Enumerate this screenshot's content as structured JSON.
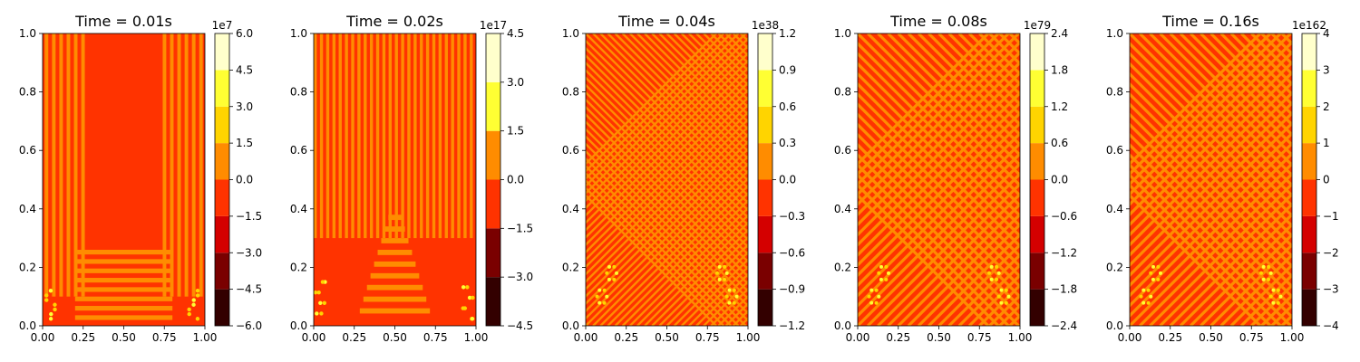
{
  "figure": {
    "background": "#ffffff",
    "colormap": "hot",
    "colormap_levels": [
      "#330000",
      "#7a0000",
      "#d40000",
      "#ff3300",
      "#ff8c00",
      "#ffd400",
      "#ffff33",
      "#ffffcc"
    ]
  },
  "chart_data": [
    {
      "type": "heatmap",
      "subtype": "filled-contour",
      "title": "Time = 0.01s",
      "xlabel": "",
      "ylabel": "",
      "xlim": [
        0,
        1
      ],
      "ylim": [
        0,
        1
      ],
      "x_ticks": [
        "0.00",
        "0.25",
        "0.50",
        "0.75",
        "1.00"
      ],
      "y_ticks": [
        "0.0",
        "0.2",
        "0.4",
        "0.6",
        "0.8",
        "1.0"
      ],
      "colorbar": {
        "range": [
          -6,
          6
        ],
        "ticks": [
          -6.0,
          -4.5,
          -3.0,
          -1.5,
          0.0,
          1.5,
          3.0,
          4.5,
          6.0
        ],
        "tick_labels": [
          "−6.0",
          "−4.5",
          "−3.0",
          "−1.5",
          "0.0",
          "1.5",
          "3.0",
          "4.5",
          "6.0"
        ],
        "offset": "1e7"
      },
      "pattern": "rect"
    },
    {
      "type": "heatmap",
      "subtype": "filled-contour",
      "title": "Time = 0.02s",
      "xlabel": "",
      "ylabel": "",
      "xlim": [
        0,
        1
      ],
      "ylim": [
        0,
        1
      ],
      "x_ticks": [
        "0.00",
        "0.25",
        "0.50",
        "0.75",
        "1.00"
      ],
      "y_ticks": [
        "0.0",
        "0.2",
        "0.4",
        "0.6",
        "0.8",
        "1.0"
      ],
      "colorbar": {
        "range": [
          -4.5,
          4.5
        ],
        "ticks": [
          -4.5,
          -3.0,
          -1.5,
          0.0,
          1.5,
          3.0,
          4.5
        ],
        "tick_labels": [
          "−4.5",
          "−3.0",
          "−1.5",
          "0.0",
          "1.5",
          "3.0",
          "4.5"
        ],
        "offset": "1e17"
      },
      "pattern": "stripes"
    },
    {
      "type": "heatmap",
      "subtype": "filled-contour",
      "title": "Time = 0.04s",
      "xlabel": "",
      "ylabel": "",
      "xlim": [
        0,
        1
      ],
      "ylim": [
        0,
        1
      ],
      "x_ticks": [
        "0.00",
        "0.25",
        "0.50",
        "0.75",
        "1.00"
      ],
      "y_ticks": [
        "0.0",
        "0.2",
        "0.4",
        "0.6",
        "0.8",
        "1.0"
      ],
      "colorbar": {
        "range": [
          -1.2,
          1.2
        ],
        "ticks": [
          -1.2,
          -0.9,
          -0.6,
          -0.3,
          0.0,
          0.3,
          0.6,
          0.9,
          1.2
        ],
        "tick_labels": [
          "−1.2",
          "−0.9",
          "−0.6",
          "−0.3",
          "0.0",
          "0.3",
          "0.6",
          "0.9",
          "1.2"
        ],
        "offset": "1e38"
      },
      "pattern": "diamond"
    },
    {
      "type": "heatmap",
      "subtype": "filled-contour",
      "title": "Time = 0.08s",
      "xlabel": "",
      "ylabel": "",
      "xlim": [
        0,
        1
      ],
      "ylim": [
        0,
        1
      ],
      "x_ticks": [
        "0.00",
        "0.25",
        "0.50",
        "0.75",
        "1.00"
      ],
      "y_ticks": [
        "0.0",
        "0.2",
        "0.4",
        "0.6",
        "0.8",
        "1.0"
      ],
      "colorbar": {
        "range": [
          -2.4,
          2.4
        ],
        "ticks": [
          -2.4,
          -1.8,
          -1.2,
          -0.6,
          0.0,
          0.6,
          1.2,
          1.8,
          2.4
        ],
        "tick_labels": [
          "−2.4",
          "−1.8",
          "−1.2",
          "−0.6",
          "0.0",
          "0.6",
          "1.2",
          "1.8",
          "2.4"
        ],
        "offset": "1e79"
      },
      "pattern": "diamond"
    },
    {
      "type": "heatmap",
      "subtype": "filled-contour",
      "title": "Time = 0.16s",
      "xlabel": "",
      "ylabel": "",
      "xlim": [
        0,
        1
      ],
      "ylim": [
        0,
        1
      ],
      "x_ticks": [
        "0.00",
        "0.25",
        "0.50",
        "0.75",
        "1.00"
      ],
      "y_ticks": [
        "0.0",
        "0.2",
        "0.4",
        "0.6",
        "0.8",
        "1.0"
      ],
      "colorbar": {
        "range": [
          -4,
          4
        ],
        "ticks": [
          -4,
          -3,
          -2,
          -1,
          0,
          1,
          2,
          3,
          4
        ],
        "tick_labels": [
          "−4",
          "−3",
          "−2",
          "−1",
          "0",
          "1",
          "2",
          "3",
          "4"
        ],
        "offset": "1e162"
      },
      "pattern": "diamond"
    }
  ]
}
